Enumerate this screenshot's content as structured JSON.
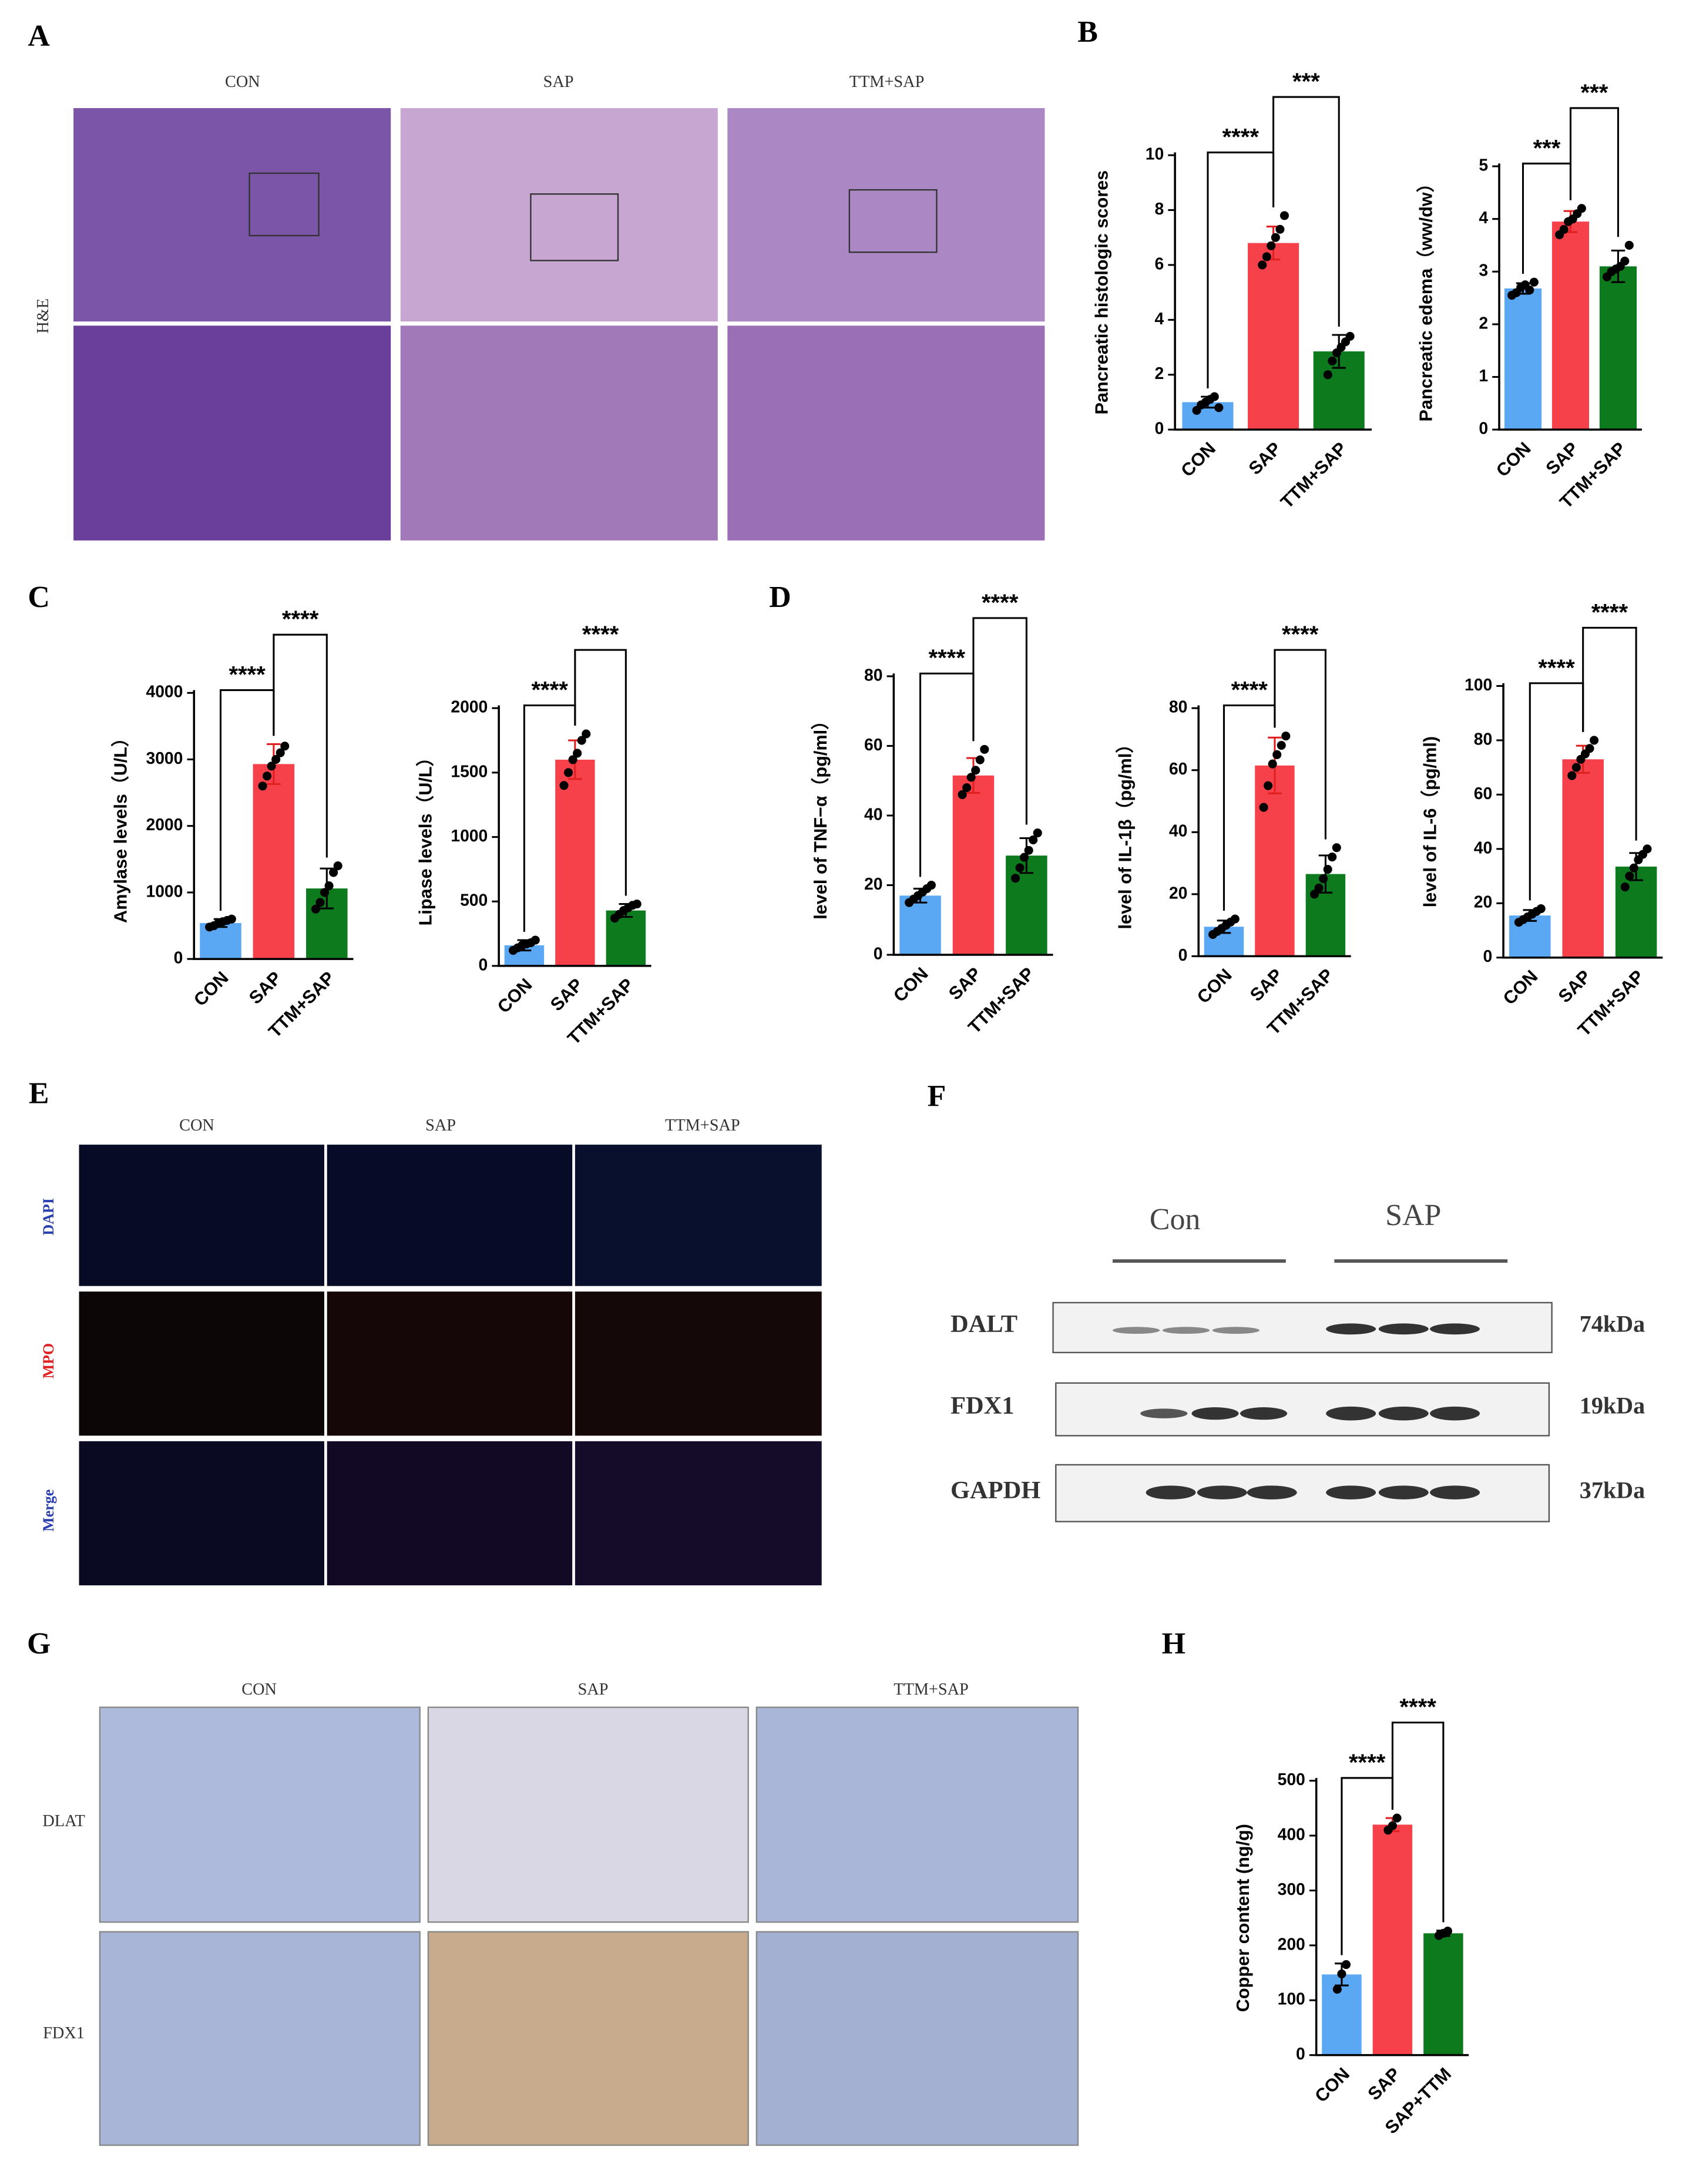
{
  "panel_letters": [
    "A",
    "B",
    "C",
    "D",
    "E",
    "F",
    "G",
    "H"
  ],
  "panel_a": {
    "columns": [
      "CON",
      "SAP",
      "TTM+SAP"
    ],
    "rows": [
      "H&E"
    ]
  },
  "panel_e": {
    "columns": [
      "CON",
      "SAP",
      "TTM+SAP"
    ],
    "rows": [
      "DAPI",
      "MPO",
      "Merge"
    ]
  },
  "panel_f": {
    "groups": [
      "Con",
      "SAP"
    ],
    "rows": [
      {
        "protein": "DALT",
        "size": "74kDa"
      },
      {
        "protein": "FDX1",
        "size": "19kDa"
      },
      {
        "protein": "GAPDH",
        "size": "37kDa"
      }
    ]
  },
  "panel_g": {
    "columns": [
      "CON",
      "SAP",
      "TTM+SAP"
    ],
    "rows": [
      "DLAT",
      "FDX1"
    ]
  },
  "chart_data": [
    {
      "type": "bar",
      "y_label": "Pancreatic histologic scores",
      "categories": [
        "CON",
        "SAP",
        "TTM+SAP"
      ],
      "colors": [
        "#5aa8f4",
        "#f6414b",
        "#0d7a1e"
      ],
      "values": [
        1.0,
        6.8,
        2.85
      ],
      "errors": [
        0.2,
        0.6,
        0.6
      ],
      "points": [
        [
          0.7,
          0.9,
          1.0,
          1.1,
          1.2,
          0.8
        ],
        [
          6.0,
          6.3,
          6.7,
          7.0,
          7.3,
          7.8
        ],
        [
          2.0,
          2.5,
          2.8,
          3.0,
          3.2,
          3.4
        ]
      ],
      "ylim": [
        0,
        10
      ],
      "yticks": [
        0,
        2,
        4,
        6,
        8,
        10
      ],
      "significance": [
        {
          "text": "****",
          "between": [
            "CON",
            "SAP"
          ]
        },
        {
          "text": "***",
          "between": [
            "SAP",
            "TTM+SAP"
          ]
        }
      ]
    },
    {
      "type": "bar",
      "y_label": "Pancreatic edema（ww/dw）",
      "categories": [
        "CON",
        "SAP",
        "TTM+SAP"
      ],
      "colors": [
        "#5aa8f4",
        "#f6414b",
        "#0d7a1e"
      ],
      "values": [
        2.68,
        3.95,
        3.1
      ],
      "errors": [
        0.1,
        0.2,
        0.3
      ],
      "points": [
        [
          2.55,
          2.6,
          2.7,
          2.75,
          2.65,
          2.8
        ],
        [
          3.7,
          3.8,
          3.95,
          4.0,
          4.1,
          4.2
        ],
        [
          2.9,
          3.0,
          3.05,
          3.1,
          3.2,
          3.5
        ]
      ],
      "ylim": [
        0,
        5
      ],
      "yticks": [
        0,
        1,
        2,
        3,
        4,
        5
      ],
      "significance": [
        {
          "text": "***",
          "between": [
            "CON",
            "SAP"
          ]
        },
        {
          "text": "***",
          "between": [
            "SAP",
            "TTM+SAP"
          ]
        }
      ]
    },
    {
      "type": "bar",
      "y_label": "Amylase  levels（U/L）",
      "categories": [
        "CON",
        "SAP",
        "TTM+SAP"
      ],
      "colors": [
        "#5aa8f4",
        "#f6414b",
        "#0d7a1e"
      ],
      "values": [
        540,
        2930,
        1060
      ],
      "errors": [
        60,
        300,
        300
      ],
      "points": [
        [
          480,
          500,
          540,
          560,
          580,
          600
        ],
        [
          2600,
          2750,
          2900,
          3000,
          3100,
          3200
        ],
        [
          750,
          850,
          1000,
          1100,
          1300,
          1400
        ]
      ],
      "ylim": [
        0,
        4000
      ],
      "yticks": [
        0,
        1000,
        2000,
        3000,
        4000
      ],
      "significance": [
        {
          "text": "****",
          "between": [
            "CON",
            "SAP"
          ]
        },
        {
          "text": "****",
          "between": [
            "SAP",
            "TTM+SAP"
          ]
        }
      ]
    },
    {
      "type": "bar",
      "y_label": "Lipase levels（U/L）",
      "categories": [
        "CON",
        "SAP",
        "TTM+SAP"
      ],
      "colors": [
        "#5aa8f4",
        "#f6414b",
        "#0d7a1e"
      ],
      "values": [
        160,
        1600,
        430
      ],
      "errors": [
        40,
        150,
        50
      ],
      "points": [
        [
          120,
          140,
          160,
          170,
          180,
          200
        ],
        [
          1400,
          1500,
          1600,
          1650,
          1750,
          1800
        ],
        [
          370,
          400,
          430,
          450,
          470,
          480
        ]
      ],
      "ylim": [
        0,
        2000
      ],
      "yticks": [
        0,
        500,
        1000,
        1500,
        2000
      ],
      "significance": [
        {
          "text": "****",
          "between": [
            "CON",
            "SAP"
          ]
        },
        {
          "text": "****",
          "between": [
            "SAP",
            "TTM+SAP"
          ]
        }
      ]
    },
    {
      "type": "bar",
      "y_label": "level of TNF−α（pg/ml）",
      "categories": [
        "CON",
        "SAP",
        "TTM+SAP"
      ],
      "colors": [
        "#5aa8f4",
        "#f6414b",
        "#0d7a1e"
      ],
      "values": [
        17,
        51.5,
        28.5
      ],
      "errors": [
        2,
        5,
        5
      ],
      "points": [
        [
          15,
          16,
          17,
          18,
          19,
          20
        ],
        [
          46,
          48,
          51,
          53,
          56,
          59
        ],
        [
          22,
          25,
          28,
          30,
          33,
          35
        ]
      ],
      "ylim": [
        0,
        80
      ],
      "yticks": [
        0,
        20,
        40,
        60,
        80
      ],
      "significance": [
        {
          "text": "****",
          "between": [
            "CON",
            "SAP"
          ]
        },
        {
          "text": "****",
          "between": [
            "SAP",
            "TTM+SAP"
          ]
        }
      ]
    },
    {
      "type": "bar",
      "y_label": "level of IL-1β（pg/ml）",
      "categories": [
        "CON",
        "SAP",
        "TTM+SAP"
      ],
      "colors": [
        "#5aa8f4",
        "#f6414b",
        "#0d7a1e"
      ],
      "values": [
        9.5,
        61.5,
        26.5
      ],
      "errors": [
        2,
        9,
        6
      ],
      "points": [
        [
          7,
          8,
          9,
          10,
          11,
          12
        ],
        [
          48,
          55,
          62,
          65,
          68,
          71
        ],
        [
          20,
          22,
          25,
          28,
          32,
          35
        ]
      ],
      "ylim": [
        0,
        80
      ],
      "yticks": [
        0,
        20,
        40,
        60,
        80
      ],
      "significance": [
        {
          "text": "****",
          "between": [
            "CON",
            "SAP"
          ]
        },
        {
          "text": "****",
          "between": [
            "SAP",
            "TTM+SAP"
          ]
        }
      ]
    },
    {
      "type": "bar",
      "y_label": "level of IL-6（pg/ml)",
      "categories": [
        "CON",
        "SAP",
        "TTM+SAP"
      ],
      "colors": [
        "#5aa8f4",
        "#f6414b",
        "#0d7a1e"
      ],
      "values": [
        15.5,
        73,
        33.5
      ],
      "errors": [
        2,
        5,
        5
      ],
      "points": [
        [
          13,
          14,
          15,
          16,
          17,
          18
        ],
        [
          67,
          70,
          73,
          75,
          77,
          80
        ],
        [
          26,
          30,
          33,
          36,
          38,
          40
        ]
      ],
      "ylim": [
        0,
        100
      ],
      "yticks": [
        0,
        20,
        40,
        60,
        80,
        100
      ],
      "significance": [
        {
          "text": "****",
          "between": [
            "CON",
            "SAP"
          ]
        },
        {
          "text": "****",
          "between": [
            "SAP",
            "TTM+SAP"
          ]
        }
      ]
    },
    {
      "type": "bar",
      "y_label": "Copper content (ng/g)",
      "categories": [
        "CON",
        "SAP",
        "SAP+TTM"
      ],
      "colors": [
        "#5aa8f4",
        "#f6414b",
        "#0d7a1e"
      ],
      "values": [
        147,
        420,
        222
      ],
      "errors": [
        20,
        12,
        5
      ],
      "points": [
        [
          120,
          148,
          165
        ],
        [
          410,
          418,
          432
        ],
        [
          218,
          222,
          226
        ]
      ],
      "ylim": [
        0,
        500
      ],
      "yticks": [
        0,
        100,
        200,
        300,
        400,
        500
      ],
      "significance": [
        {
          "text": "****",
          "between": [
            "CON",
            "SAP"
          ]
        },
        {
          "text": "****",
          "between": [
            "SAP",
            "SAP+TTM"
          ]
        }
      ]
    }
  ]
}
